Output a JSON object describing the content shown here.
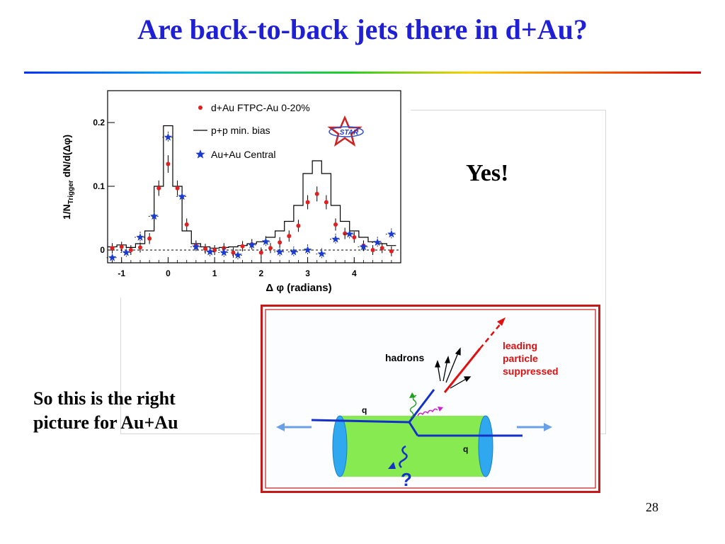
{
  "slide": {
    "title": "Are back-to-back jets there in d+Au?",
    "answer": "Yes!",
    "conclusion_line1": "So this is the right",
    "conclusion_line2": "picture for Au+Au",
    "page_number": "28"
  },
  "chart_data": {
    "type": "scatter",
    "ylabel": "1/N",
    "ylabel_sub": "Trigger",
    "ylabel_tail": " dN/d(Δφ)",
    "xlabel": "Δ φ (radians)",
    "xlim": [
      -1.3,
      5.0
    ],
    "ylim": [
      -0.02,
      0.25
    ],
    "xticks": [
      "-1",
      "0",
      "1",
      "2",
      "3",
      "4"
    ],
    "yticks": [
      "0",
      "0.1",
      "0.2"
    ],
    "xtick_values": [
      -1,
      0,
      1,
      2,
      3,
      4
    ],
    "ytick_values": [
      0,
      0.1,
      0.2
    ],
    "legend_position": "top-right",
    "logo_text": "STAR",
    "colors": {
      "dau": "#e02020",
      "pp": "#000000",
      "auau": "#1a3bd0"
    },
    "series": [
      {
        "name": "d+Au FTPC-Au 0-20%",
        "marker": "circle",
        "x": [
          -1.2,
          -1.0,
          -0.8,
          -0.6,
          -0.4,
          -0.2,
          0.0,
          0.2,
          0.4,
          0.6,
          0.8,
          1.0,
          1.2,
          1.4,
          1.6,
          1.8,
          2.0,
          2.2,
          2.4,
          2.6,
          2.8,
          3.0,
          3.2,
          3.4,
          3.6,
          3.8,
          4.0,
          4.2,
          4.4,
          4.6,
          4.8
        ],
        "y": [
          0.003,
          0.005,
          0.0,
          0.004,
          0.018,
          0.097,
          0.135,
          0.097,
          0.04,
          0.007,
          0.002,
          0.0,
          0.003,
          -0.004,
          0.006,
          0.009,
          -0.004,
          0.003,
          0.012,
          0.022,
          0.038,
          0.075,
          0.088,
          0.075,
          0.04,
          0.026,
          0.02,
          0.007,
          0.0,
          0.003,
          -0.002
        ]
      },
      {
        "name": "p+p min. bias",
        "marker": "step",
        "x": [
          -1.2,
          -1.0,
          -0.8,
          -0.6,
          -0.4,
          -0.2,
          0.0,
          0.2,
          0.4,
          0.6,
          0.8,
          1.0,
          1.2,
          1.4,
          1.6,
          1.8,
          2.0,
          2.2,
          2.4,
          2.6,
          2.8,
          3.0,
          3.2,
          3.4,
          3.6,
          3.8,
          4.0,
          4.2,
          4.4,
          4.6,
          4.8
        ],
        "y": [
          0.005,
          0.008,
          0.004,
          0.01,
          0.03,
          0.1,
          0.195,
          0.1,
          0.03,
          0.01,
          0.005,
          0.003,
          0.004,
          0.005,
          0.007,
          0.01,
          0.013,
          0.02,
          0.03,
          0.045,
          0.07,
          0.12,
          0.14,
          0.12,
          0.07,
          0.045,
          0.03,
          0.02,
          0.013,
          0.01,
          0.007
        ]
      },
      {
        "name": "Au+Au Central",
        "marker": "star",
        "x": [
          -1.2,
          -0.9,
          -0.6,
          -0.3,
          0.0,
          0.3,
          0.6,
          0.9,
          1.2,
          1.5,
          1.8,
          2.1,
          2.4,
          2.7,
          3.0,
          3.3,
          3.6,
          3.9,
          4.2,
          4.5,
          4.8
        ],
        "y": [
          -0.012,
          -0.004,
          0.02,
          0.053,
          0.177,
          0.084,
          0.005,
          -0.003,
          -0.004,
          -0.008,
          0.008,
          0.013,
          -0.003,
          -0.003,
          0.0,
          -0.006,
          0.017,
          0.025,
          0.005,
          0.012,
          0.025
        ]
      }
    ]
  },
  "diagram": {
    "label_hadrons": "hadrons",
    "label_leading1": "leading",
    "label_leading2": "particle",
    "label_leading3": "suppressed",
    "label_q_top": "q",
    "label_q_bottom": "q",
    "label_question": "?",
    "colors": {
      "border": "#c81818",
      "cylinder": "#7de84a",
      "cylinder_cap": "#2fa8f0",
      "quark": "#1530c8",
      "red": "#e01010",
      "arrow": "#6aa0e8"
    }
  }
}
